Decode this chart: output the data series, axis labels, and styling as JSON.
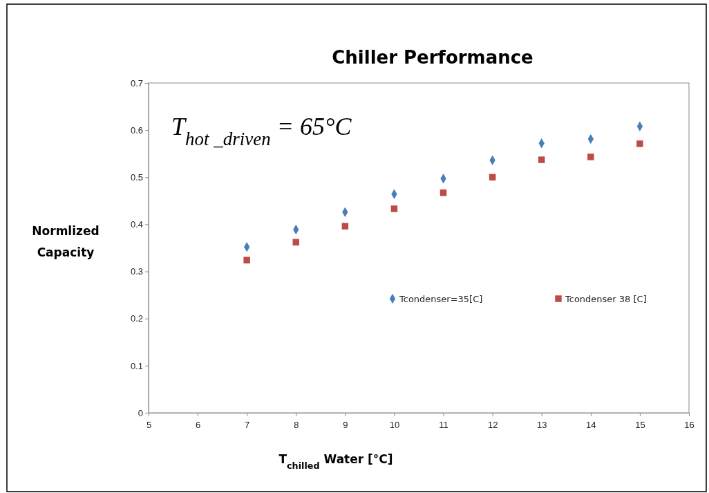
{
  "chart_data": {
    "type": "scatter",
    "title": "Chiller Performance",
    "xlabel": "T$_{chilled}$ Water [°C]",
    "ylabel": "Normlized Capacity",
    "annotations": [
      "T$_{hot _driven}$ = 65°C"
    ],
    "x": [
      7,
      8,
      9,
      10,
      11,
      12,
      13,
      14,
      15
    ],
    "series": [
      {
        "name": "Tcondenser=35[C]",
        "color": "#4a7ebb",
        "marker": "diamond",
        "values": [
          0.352,
          0.389,
          0.426,
          0.464,
          0.497,
          0.536,
          0.572,
          0.581,
          0.608
        ]
      },
      {
        "name": "Tcondenser 38 [C]",
        "color": "#be4b48",
        "marker": "square",
        "values": [
          0.324,
          0.362,
          0.396,
          0.433,
          0.467,
          0.5,
          0.537,
          0.543,
          0.571
        ]
      }
    ],
    "xlim": [
      5,
      16
    ],
    "xticks": [
      5,
      6,
      7,
      8,
      9,
      10,
      11,
      12,
      13,
      14,
      15,
      16
    ],
    "ylim": [
      0,
      0.7
    ],
    "yticks": [
      0,
      0.1,
      0.2,
      0.3,
      0.4,
      0.5,
      0.6,
      0.7
    ],
    "grid": false,
    "legend": "right"
  }
}
